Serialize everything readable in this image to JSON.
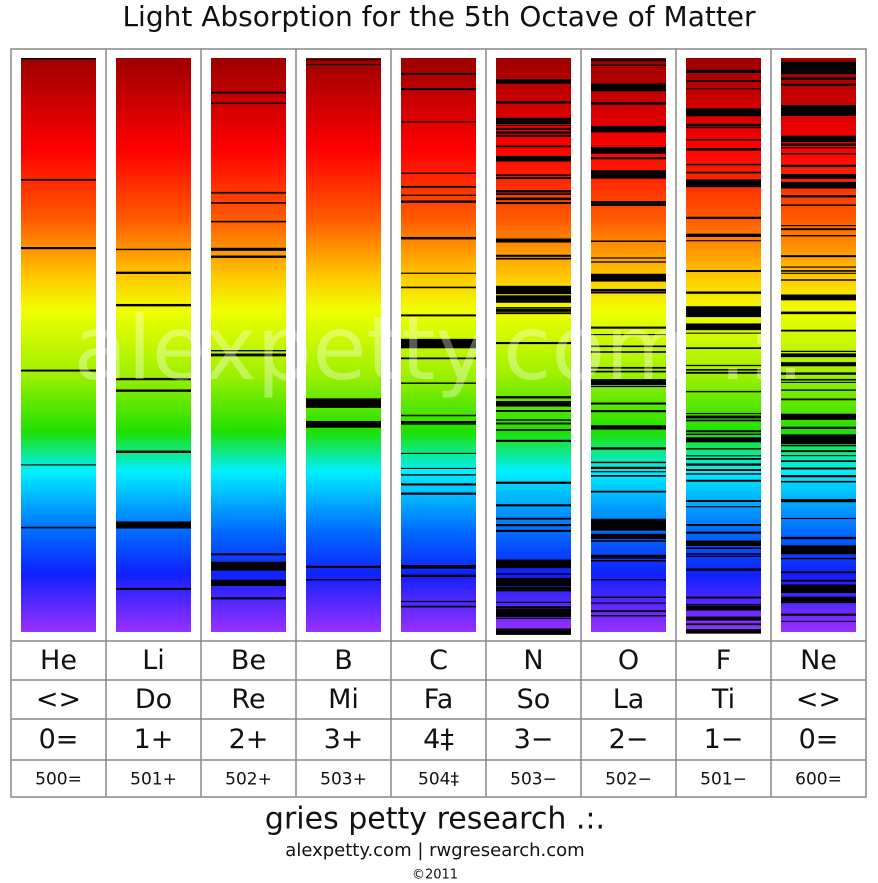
{
  "title": "Light Absorption for the 5th Octave of Matter",
  "watermark": "alexpetty.com .:.",
  "columns": [
    {
      "element": "He",
      "note": "<>",
      "valence": "0=",
      "number": "500="
    },
    {
      "element": "Li",
      "note": "Do",
      "valence": "1+",
      "number": "501+"
    },
    {
      "element": "Be",
      "note": "Re",
      "valence": "2+",
      "number": "502+"
    },
    {
      "element": "B",
      "note": "Mi",
      "valence": "3+",
      "number": "503+"
    },
    {
      "element": "C",
      "note": "Fa",
      "valence": "4‡",
      "number": "504‡"
    },
    {
      "element": "N",
      "note": "So",
      "valence": "3−",
      "number": "503−"
    },
    {
      "element": "O",
      "note": "La",
      "valence": "2−",
      "number": "502−"
    },
    {
      "element": "F",
      "note": "Ti",
      "valence": "1−",
      "number": "501−"
    },
    {
      "element": "Ne",
      "note": "<>",
      "valence": "0=",
      "number": "600="
    }
  ],
  "footer": {
    "name": "gries petty research .:.",
    "sites": "alexpetty.com | rwgresearch.com",
    "copyright": "©2011"
  }
}
